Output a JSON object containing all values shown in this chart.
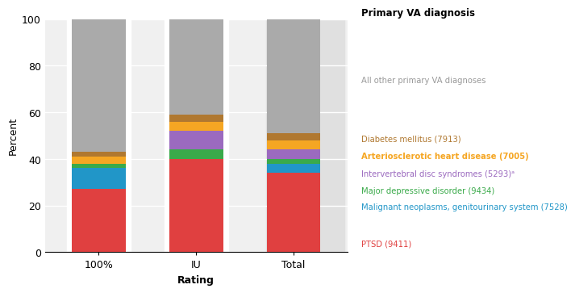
{
  "categories": [
    "100%",
    "IU",
    "Total"
  ],
  "segments": {
    "PTSD (9411)": {
      "values": [
        27,
        40,
        34
      ],
      "color": "#e04040"
    },
    "Malignant neoplasms, genitourinary system (7528)": {
      "values": [
        9,
        0,
        4
      ],
      "color": "#2196c8"
    },
    "Major depressive disorder (9434)": {
      "values": [
        2,
        4,
        2
      ],
      "color": "#3aaa4a"
    },
    "Intervertebral disc syndromes (5293)": {
      "values": [
        0,
        8,
        4
      ],
      "color": "#9b6abf"
    },
    "Arteriosclerotic heart disease (7005)": {
      "values": [
        3,
        4,
        4
      ],
      "color": "#f5a623"
    },
    "Diabetes mellitus (7913)": {
      "values": [
        2,
        3,
        3
      ],
      "color": "#b07830"
    },
    "All other primary VA diagnoses": {
      "values": [
        57,
        41,
        49
      ],
      "color": "#aaaaaa"
    }
  },
  "ylabel": "Percent",
  "xlabel": "Rating",
  "legend_title": "Primary VA diagnosis",
  "ylim": [
    0,
    100
  ],
  "yticks": [
    0,
    20,
    40,
    60,
    80,
    100
  ],
  "plot_bg_color": "#f0f0f0",
  "total_bg_color": "#e0e0e0",
  "bar_area_color": "#ffffff",
  "segment_order": [
    "PTSD (9411)",
    "Malignant neoplasms, genitourinary system (7528)",
    "Major depressive disorder (9434)",
    "Intervertebral disc syndromes (5293)",
    "Arteriosclerotic heart disease (7005)",
    "Diabetes mellitus (7913)",
    "All other primary VA diagnoses"
  ],
  "legend_items": [
    {
      "label": "All other primary VA diagnoses",
      "color": "#999999",
      "bold": false,
      "italic": false
    },
    {
      "label": "Diabetes mellitus (7913)",
      "color": "#b07830",
      "bold": false,
      "italic": false
    },
    {
      "label": "Arteriosclerotic heart disease (7005)",
      "color": "#f5a623",
      "bold": true,
      "italic": false
    },
    {
      "label": "Intervertebral disc syndromes (5293)ᵃ",
      "color": "#9b6abf",
      "bold": false,
      "italic": false
    },
    {
      "label": "Major depressive disorder (9434)",
      "color": "#3aaa4a",
      "bold": false,
      "italic": false
    },
    {
      "label": "Malignant neoplasms, genitourinary system (7528)",
      "color": "#2196c8",
      "bold": false,
      "italic": false
    },
    {
      "label": "PTSD (9411)",
      "color": "#e04040",
      "bold": false,
      "italic": false
    }
  ]
}
